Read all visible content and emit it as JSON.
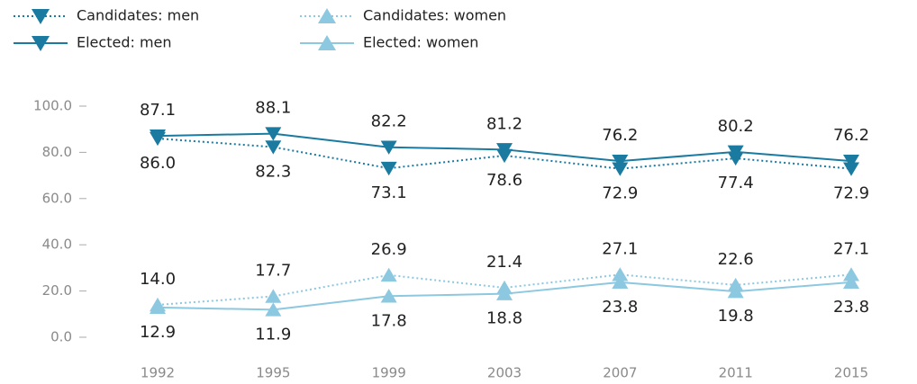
{
  "chart_data": {
    "type": "line",
    "categories": [
      "1992",
      "1995",
      "1999",
      "2003",
      "2007",
      "2011",
      "2015"
    ],
    "series": [
      {
        "name": "Candidates: men",
        "color": "#1a7aa0",
        "dash": "dotted",
        "marker": "down",
        "values": [
          86.0,
          82.3,
          73.1,
          78.6,
          72.9,
          77.4,
          72.9
        ],
        "value_labels": [
          "86.0",
          "82.3",
          "73.1",
          "78.6",
          "72.9",
          "77.4",
          "72.9"
        ]
      },
      {
        "name": "Elected: men",
        "color": "#1a7aa0",
        "dash": "solid",
        "marker": "down",
        "values": [
          87.1,
          88.1,
          82.2,
          81.2,
          76.2,
          80.2,
          76.2
        ],
        "value_labels": [
          "87.1",
          "88.1",
          "82.2",
          "81.2",
          "76.2",
          "80.2",
          "76.2"
        ]
      },
      {
        "name": "Candidates: women",
        "color": "#8cc8e0",
        "dash": "dotted",
        "marker": "up",
        "values": [
          14.0,
          17.7,
          26.9,
          21.4,
          27.1,
          22.6,
          27.1
        ],
        "value_labels": [
          "14.0",
          "17.7",
          "26.9",
          "21.4",
          "27.1",
          "22.6",
          "27.1"
        ]
      },
      {
        "name": "Elected: women",
        "color": "#8cc8e0",
        "dash": "solid",
        "marker": "up",
        "values": [
          12.9,
          11.9,
          17.8,
          18.8,
          23.8,
          19.8,
          23.8
        ],
        "value_labels": [
          "12.9",
          "11.9",
          "17.8",
          "18.8",
          "23.8",
          "19.8",
          "23.8"
        ]
      }
    ],
    "ylim": [
      0,
      100
    ],
    "yticks": [
      {
        "value": 0,
        "label": "0.0"
      },
      {
        "value": 20,
        "label": "20.0"
      },
      {
        "value": 40,
        "label": "40.0"
      },
      {
        "value": 60,
        "label": "60.0"
      },
      {
        "value": 80,
        "label": "80.0"
      },
      {
        "value": 100,
        "label": "100.0"
      }
    ],
    "grid": false,
    "legend": "top-left"
  }
}
